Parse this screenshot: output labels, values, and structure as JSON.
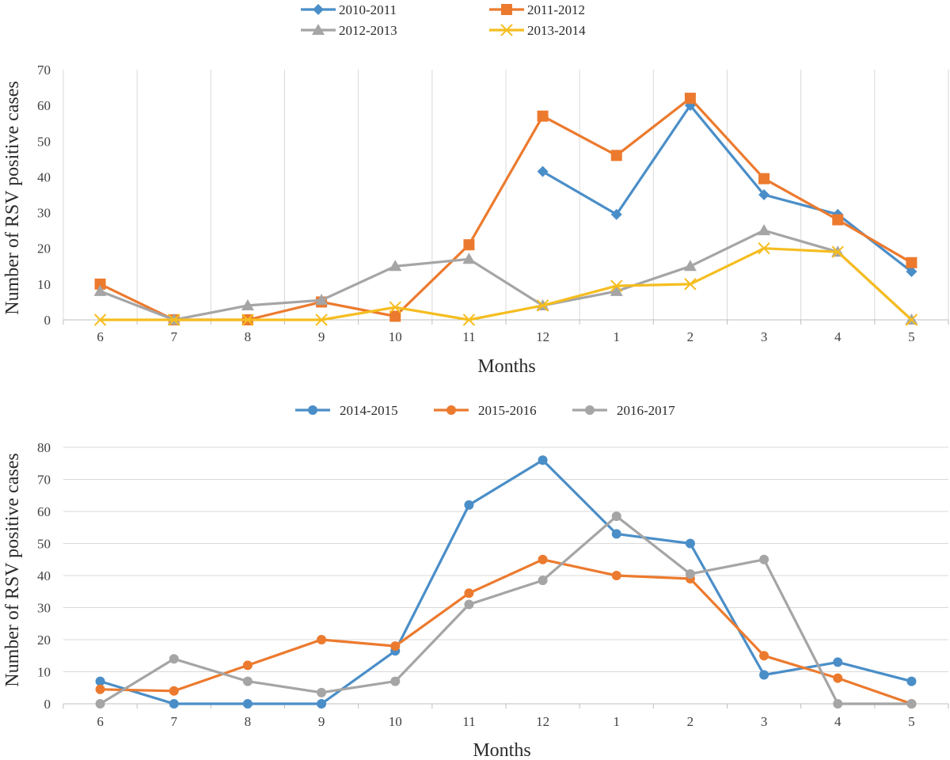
{
  "chart_data": [
    {
      "type": "line",
      "title": "",
      "xlabel": "Months",
      "ylabel": "Number of  RSV positive cases",
      "categories": [
        "6",
        "7",
        "8",
        "9",
        "10",
        "11",
        "12",
        "1",
        "2",
        "3",
        "4",
        "5"
      ],
      "ylim": [
        0,
        70
      ],
      "yticks": [
        0,
        10,
        20,
        30,
        40,
        50,
        60,
        70
      ],
      "grid": "vertical",
      "legend_position": "top",
      "series": [
        {
          "name": "2010-2011",
          "color": "#4a8ec8",
          "marker": "diamond",
          "values": [
            null,
            null,
            null,
            null,
            null,
            null,
            41.5,
            29.5,
            60,
            35,
            29.5,
            13.5
          ]
        },
        {
          "name": "2011-2012",
          "color": "#ec7a2e",
          "marker": "square",
          "values": [
            10,
            0,
            0,
            5,
            1,
            21,
            57,
            46,
            62,
            39.5,
            28,
            16
          ]
        },
        {
          "name": "2012-2013",
          "color": "#a5a5a5",
          "marker": "triangle",
          "values": [
            8,
            0,
            4,
            5.5,
            15,
            17,
            4,
            8,
            15,
            25,
            19,
            0
          ]
        },
        {
          "name": "2013-2014",
          "color": "#f5bd1f",
          "marker": "x",
          "values": [
            0,
            0,
            0,
            0,
            3.5,
            0,
            4,
            9.5,
            10,
            20,
            19,
            0
          ]
        }
      ]
    },
    {
      "type": "line",
      "title": "",
      "xlabel": "Months",
      "ylabel": "Number of  RSV positive cases",
      "categories": [
        "6",
        "7",
        "8",
        "9",
        "10",
        "11",
        "12",
        "1",
        "2",
        "3",
        "4",
        "5"
      ],
      "ylim": [
        0,
        80
      ],
      "yticks": [
        0,
        10,
        20,
        30,
        40,
        50,
        60,
        70,
        80
      ],
      "grid": "horizontal",
      "legend_position": "top",
      "series": [
        {
          "name": "2014-2015",
          "color": "#4a8ec8",
          "marker": "circle",
          "values": [
            7,
            0,
            0,
            0,
            16.5,
            62,
            76,
            53,
            50,
            9,
            13,
            7
          ]
        },
        {
          "name": "2015-2016",
          "color": "#ec7a2e",
          "marker": "circle",
          "values": [
            4.5,
            4,
            12,
            20,
            18,
            34.5,
            45,
            40,
            39,
            15,
            8,
            0
          ]
        },
        {
          "name": "2016-2017",
          "color": "#a5a5a5",
          "marker": "circle",
          "values": [
            0,
            14,
            7,
            3.5,
            7,
            31,
            38.5,
            58.5,
            40.5,
            45,
            0,
            0
          ]
        }
      ]
    }
  ]
}
